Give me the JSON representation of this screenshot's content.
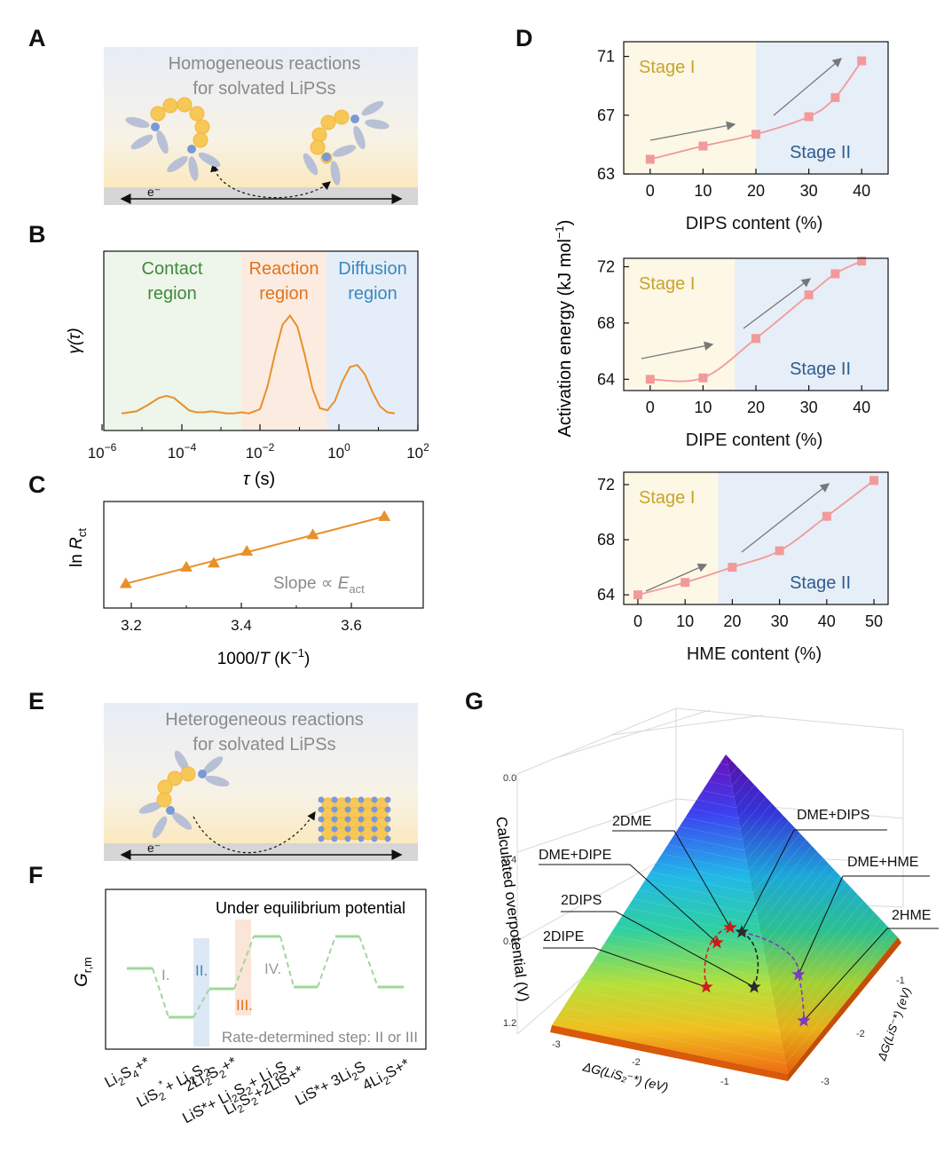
{
  "panel_letters": [
    "A",
    "B",
    "C",
    "D",
    "E",
    "F",
    "G"
  ],
  "panelA": {
    "title_line1": "Homogeneous reactions",
    "title_line2": "for solvated LiPSs",
    "electron": "e⁻"
  },
  "panelE": {
    "title_line1": "Heterogeneous reactions",
    "title_line2": "for solvated LiPSs",
    "electron": "e⁻"
  },
  "panelB": {
    "regions": [
      {
        "line1": "Contact",
        "line2": "region",
        "color": "#3f8a3a",
        "bg": "#eef5ea"
      },
      {
        "line1": "Reaction",
        "line2": "region",
        "color": "#e0741b",
        "bg": "#fcebe0"
      },
      {
        "line1": "Diffusion",
        "line2": "region",
        "color": "#3c87c0",
        "bg": "#e5eef8"
      }
    ],
    "ylabel": "γ(τ)",
    "xlabel_sym": "τ",
    "xlabel_unit": " (s)",
    "tick_base": "10",
    "tick_exps": [
      "−6",
      "−4",
      "−2",
      "0",
      "2"
    ],
    "line_color": "#e8902c"
  },
  "panelC": {
    "ylabel_main": "ln ",
    "ylabel_sym": "R",
    "ylabel_sub": "ct",
    "xlabel_main": "1000/",
    "xlabel_sym": "T",
    "xlabel_unit": " (K",
    "xlabel_sup": "−1",
    "xlabel_close": ")",
    "annot_main": "Slope ∝ ",
    "annot_sym": "E",
    "annot_sub": "act",
    "xticks": [
      "3.2",
      "3.4",
      "3.6"
    ],
    "color": "#e8902c"
  },
  "panelD": {
    "ylabel": "Activation energy (kJ mol",
    "ylabel_sup": "−1",
    "ylabel_close": ")",
    "stage1": "Stage I",
    "stage2": "Stage II",
    "stage1_color": "#c8a42a",
    "stage2_color": "#2f5d8c",
    "stage1_bg": "#fdf7e6",
    "stage2_bg": "#e6eef8",
    "marker_color": "#f29a9a"
  },
  "panelF": {
    "ylabel_main": "G",
    "ylabel_sub": "r,m",
    "title": "Under equilibrium potential",
    "step_labels": [
      "I.",
      "II.",
      "III.",
      "IV."
    ],
    "footer": "Rate-determined step: II or III",
    "x_labels": [
      {
        "parts": [
          [
            "Li",
            ""
          ],
          [
            "2",
            "sub"
          ],
          [
            "S",
            ""
          ],
          [
            "4",
            "sub"
          ],
          [
            "+*",
            ""
          ]
        ]
      },
      {
        "parts": [
          [
            "LiS",
            ""
          ],
          [
            "2",
            "sub"
          ],
          [
            "*",
            "sup"
          ],
          [
            "+ Li",
            ""
          ],
          [
            "2",
            "sub"
          ],
          [
            "S",
            ""
          ],
          [
            "2",
            "sub"
          ]
        ]
      },
      {
        "parts": [
          [
            "2Li",
            ""
          ],
          [
            "2",
            "sub"
          ],
          [
            "S",
            ""
          ],
          [
            "2",
            "sub"
          ],
          [
            "+*",
            ""
          ]
        ]
      },
      {
        "parts": [
          [
            "LiS*+ Li",
            ""
          ],
          [
            "2",
            "sub"
          ],
          [
            "S",
            ""
          ],
          [
            "2",
            "sub"
          ],
          [
            "+ Li",
            ""
          ],
          [
            "2",
            "sub"
          ],
          [
            "S",
            ""
          ]
        ]
      },
      {
        "parts": [
          [
            "Li",
            ""
          ],
          [
            "2",
            "sub"
          ],
          [
            "S",
            ""
          ],
          [
            "2",
            "sub"
          ],
          [
            "+2LiS+*",
            ""
          ]
        ]
      },
      {
        "parts": [
          [
            "LiS*+ 3Li",
            ""
          ],
          [
            "2",
            "sub"
          ],
          [
            "S",
            ""
          ]
        ]
      },
      {
        "parts": [
          [
            "4Li",
            ""
          ],
          [
            "2",
            "sub"
          ],
          [
            "S+*",
            ""
          ]
        ]
      }
    ]
  },
  "panelG": {
    "zlabel": "Calculated overpotential (V)",
    "xlabel": "ΔG(LiS₂⁻*) (eV)",
    "ylabel": "ΔG(LiS⁻*) (eV)",
    "zticks": [
      "0.0",
      "0.4",
      "0.8",
      "1.2"
    ],
    "xticks": [
      "-3",
      "-2",
      "-1"
    ],
    "yticks": [
      "-1",
      "-2",
      "-3"
    ],
    "labels": [
      "2DME",
      "DME+DIPS",
      "DME+DIPE",
      "DME+HME",
      "2DIPS",
      "2DIPE",
      "2HME"
    ]
  },
  "chart_data": [
    {
      "type": "line",
      "title": "",
      "xlabel": "DIPS content (%)",
      "ylabel": "",
      "x": [
        0,
        10,
        20,
        30,
        35,
        40
      ],
      "xticks": [
        0,
        10,
        20,
        30,
        40
      ],
      "yticks": [
        63,
        67,
        71
      ],
      "xlim": [
        -5,
        45
      ],
      "ylim": [
        63,
        72
      ],
      "stage_boundary": 20,
      "series": [
        {
          "values": [
            64.0,
            64.9,
            65.7,
            66.9,
            68.2,
            70.7
          ]
        }
      ]
    },
    {
      "type": "line",
      "title": "",
      "xlabel": "DIPE content (%)",
      "ylabel": "",
      "x": [
        0,
        10,
        20,
        30,
        35,
        40
      ],
      "xticks": [
        0,
        10,
        20,
        30,
        40
      ],
      "yticks": [
        64,
        68,
        72
      ],
      "xlim": [
        -5,
        45
      ],
      "ylim": [
        63.2,
        72.6
      ],
      "stage_boundary": 16,
      "series": [
        {
          "values": [
            64.0,
            64.1,
            66.9,
            70.0,
            71.5,
            72.4
          ]
        }
      ]
    },
    {
      "type": "line",
      "title": "",
      "xlabel": "HME content (%)",
      "ylabel": "",
      "x": [
        0,
        10,
        20,
        30,
        40,
        50
      ],
      "xticks": [
        0,
        10,
        20,
        30,
        40,
        50
      ],
      "yticks": [
        64,
        68,
        72
      ],
      "xlim": [
        -3,
        53
      ],
      "ylim": [
        63.3,
        72.9
      ],
      "stage_boundary": 17,
      "series": [
        {
          "values": [
            64.0,
            64.9,
            66.0,
            67.2,
            69.7,
            72.3
          ]
        }
      ]
    },
    {
      "type": "scatter",
      "title": "",
      "xlabel": "1000/T (K−1)",
      "ylabel": "ln Rct",
      "xlim": [
        3.15,
        3.72
      ],
      "ylim": [
        0,
        1
      ],
      "x": [
        3.19,
        3.3,
        3.35,
        3.41,
        3.53,
        3.66
      ],
      "series": [
        {
          "values": [
            0.14,
            0.35,
            0.4,
            0.55,
            0.76,
            0.99
          ]
        }
      ],
      "trend": {
        "x": [
          3.19,
          3.66
        ],
        "y": [
          0.14,
          0.99
        ]
      }
    },
    {
      "type": "line",
      "title": "",
      "xlabel": "τ (s)",
      "ylabel": "γ(τ)",
      "xlim_log10": [
        -6,
        2
      ],
      "regions_log10": [
        [
          -6,
          -2.4
        ],
        [
          -2.4,
          -0.3
        ],
        [
          -0.3,
          2
        ]
      ],
      "series": [
        {
          "x_log10": [
            -5.7,
            -5.3,
            -5.0,
            -4.7,
            -4.5,
            -4.3,
            -4.1,
            -3.9,
            -3.7,
            -3.5,
            -3.3,
            -3.1,
            -2.9,
            -2.7,
            -2.5,
            -2.3,
            -2.0,
            -1.8,
            -1.6,
            -1.4,
            -1.2,
            -1.0,
            -0.8,
            -0.6,
            -0.4,
            -0.2,
            0.0,
            0.2,
            0.4,
            0.6,
            0.8,
            1.0,
            1.2,
            1.4,
            1.6
          ],
          "values": [
            0.02,
            0.04,
            0.1,
            0.17,
            0.19,
            0.17,
            0.11,
            0.05,
            0.03,
            0.03,
            0.04,
            0.03,
            0.02,
            0.02,
            0.03,
            0.02,
            0.06,
            0.28,
            0.6,
            0.88,
            0.97,
            0.86,
            0.58,
            0.26,
            0.07,
            0.05,
            0.14,
            0.33,
            0.47,
            0.49,
            0.4,
            0.23,
            0.09,
            0.03,
            0.02
          ]
        }
      ]
    }
  ]
}
